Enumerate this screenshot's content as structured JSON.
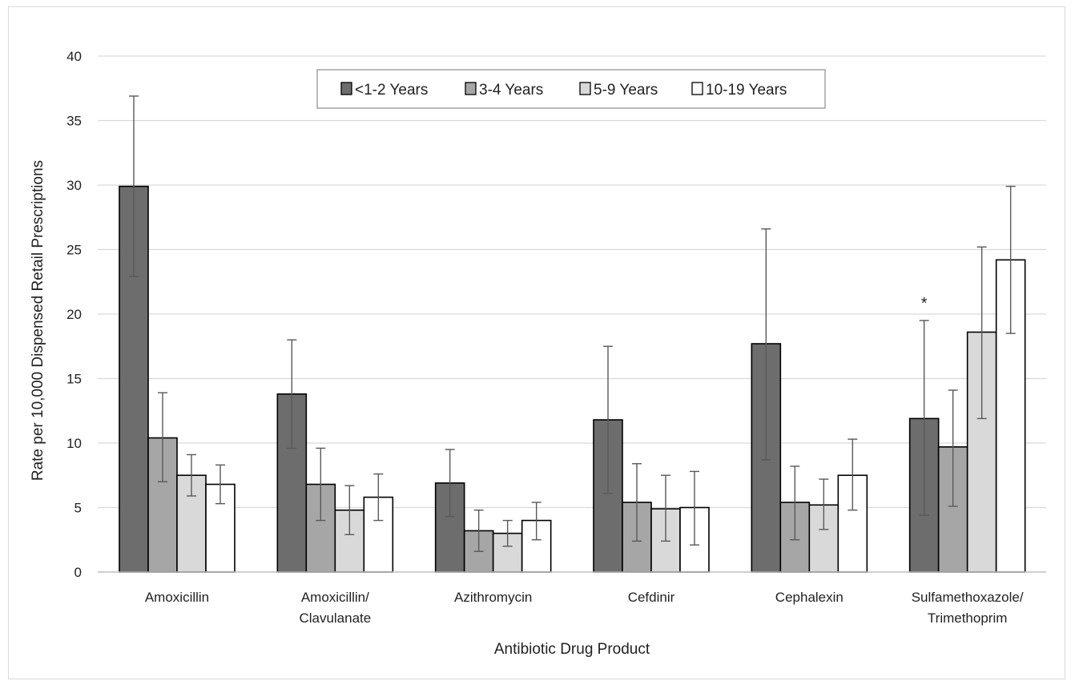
{
  "chart_data": {
    "type": "bar",
    "title": "",
    "xlabel": "Antibiotic Drug Product",
    "ylabel": "Rate per 10,000 Dispensed Retail Prescriptions",
    "ylim": [
      0,
      40
    ],
    "yticks": [
      0,
      5,
      10,
      15,
      20,
      25,
      30,
      35,
      40
    ],
    "grid": true,
    "legend_position": "top-center",
    "categories": [
      [
        "Amoxicillin"
      ],
      [
        "Amoxicillin/",
        "Clavulanate"
      ],
      [
        "Azithromycin"
      ],
      [
        "Cefdinir"
      ],
      [
        "Cephalexin"
      ],
      [
        "Sulfamethoxazole/",
        "Trimethoprim"
      ]
    ],
    "series": [
      {
        "name": "<1-2 Years",
        "color": "#6d6d6d",
        "values": [
          29.9,
          13.8,
          6.9,
          11.8,
          17.7,
          11.9
        ],
        "err_low": [
          22.9,
          9.6,
          4.3,
          6.1,
          8.7,
          4.4
        ],
        "err_high": [
          36.9,
          18.0,
          9.5,
          17.5,
          26.6,
          19.5
        ]
      },
      {
        "name": "3-4 Years",
        "color": "#a6a6a6",
        "values": [
          10.4,
          6.8,
          3.2,
          5.4,
          5.4,
          9.7
        ],
        "err_low": [
          7.0,
          4.0,
          1.6,
          2.4,
          2.5,
          5.1
        ],
        "err_high": [
          13.9,
          9.6,
          4.8,
          8.4,
          8.2,
          14.1
        ]
      },
      {
        "name": "5-9 Years",
        "color": "#d9d9d9",
        "values": [
          7.5,
          4.8,
          3.0,
          4.9,
          5.2,
          18.6
        ],
        "err_low": [
          5.9,
          2.9,
          2.0,
          2.4,
          3.3,
          11.9
        ],
        "err_high": [
          9.1,
          6.7,
          4.0,
          7.5,
          7.2,
          25.2
        ]
      },
      {
        "name": "10-19 Years",
        "color": "#ffffff",
        "values": [
          6.8,
          5.8,
          4.0,
          5.0,
          7.5,
          24.2
        ],
        "err_low": [
          5.3,
          4.0,
          2.5,
          2.1,
          4.8,
          18.5
        ],
        "err_high": [
          8.3,
          7.6,
          5.4,
          7.8,
          10.3,
          29.9
        ]
      }
    ],
    "annotations": [
      {
        "text": "*",
        "category_index": 5,
        "series_index": 0,
        "y": 20.8
      }
    ]
  }
}
